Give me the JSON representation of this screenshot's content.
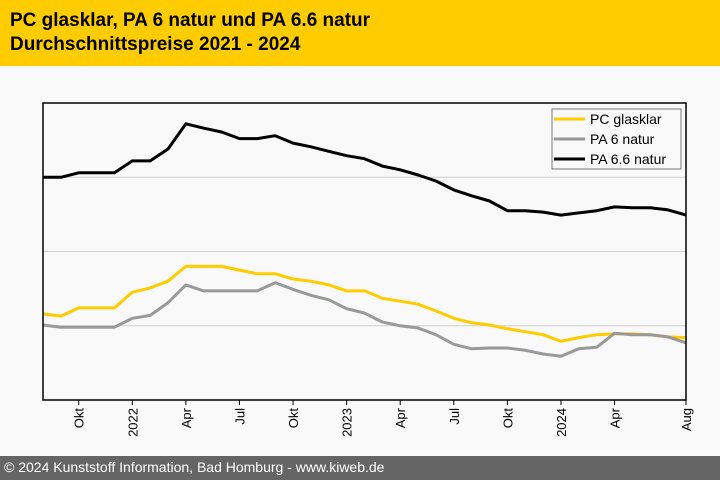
{
  "header": {
    "title_line1": "PC glasklar, PA 6 natur und PA 6.6 natur",
    "title_line2": "Durchschnittspreise 2021 - 2024",
    "background_color": "#ffcc00"
  },
  "footer": {
    "text": "© 2024 Kunststoff Information, Bad Homburg - www.kiweb.de",
    "background_color": "#656565"
  },
  "chart_data": {
    "type": "line",
    "title": "PC glasklar, PA 6 natur und PA 6.6 natur — Durchschnittspreise 2021 - 2024",
    "xlabel": "",
    "ylabel": "",
    "y_unit_note": "No y-axis tick labels shown; values are relative index units where horizontal gridlines are at 1, 2 and 3",
    "ylim": [
      0,
      4
    ],
    "y_gridlines": [
      1,
      2,
      3
    ],
    "grid": true,
    "legend_position": "top-right",
    "x": [
      "2021-08",
      "2021-09",
      "2021-10",
      "2021-11",
      "2021-12",
      "2022-01",
      "2022-02",
      "2022-03",
      "2022-04",
      "2022-05",
      "2022-06",
      "2022-07",
      "2022-08",
      "2022-09",
      "2022-10",
      "2022-11",
      "2022-12",
      "2023-01",
      "2023-02",
      "2023-03",
      "2023-04",
      "2023-05",
      "2023-06",
      "2023-07",
      "2023-08",
      "2023-09",
      "2023-10",
      "2023-11",
      "2023-12",
      "2024-01",
      "2024-02",
      "2024-03",
      "2024-04",
      "2024-05",
      "2024-06",
      "2024-07",
      "2024-08"
    ],
    "x_ticks": [
      {
        "x": "2021-10",
        "label": "Okt"
      },
      {
        "x": "2022-01",
        "label": "2022"
      },
      {
        "x": "2022-04",
        "label": "Apr"
      },
      {
        "x": "2022-07",
        "label": "Jul"
      },
      {
        "x": "2022-10",
        "label": "Okt"
      },
      {
        "x": "2023-01",
        "label": "2023"
      },
      {
        "x": "2023-04",
        "label": "Apr"
      },
      {
        "x": "2023-07",
        "label": "Jul"
      },
      {
        "x": "2023-10",
        "label": "Okt"
      },
      {
        "x": "2024-01",
        "label": "2024"
      },
      {
        "x": "2024-04",
        "label": "Apr"
      },
      {
        "x": "2024-08",
        "label": "Aug"
      }
    ],
    "series": [
      {
        "name": "PC glasklar",
        "color": "#ffcc00",
        "values": [
          1.16,
          1.13,
          1.24,
          1.24,
          1.24,
          1.45,
          1.51,
          1.6,
          1.8,
          1.8,
          1.8,
          1.75,
          1.7,
          1.7,
          1.63,
          1.6,
          1.55,
          1.47,
          1.47,
          1.37,
          1.33,
          1.29,
          1.2,
          1.1,
          1.04,
          1.01,
          0.96,
          0.92,
          0.88,
          0.79,
          0.84,
          0.88,
          0.89,
          0.89,
          0.88,
          0.85,
          0.84
        ]
      },
      {
        "name": "PA 6 natur",
        "color": "#999999",
        "values": [
          1.01,
          0.98,
          0.98,
          0.98,
          0.98,
          1.1,
          1.14,
          1.31,
          1.55,
          1.47,
          1.47,
          1.47,
          1.47,
          1.58,
          1.49,
          1.41,
          1.35,
          1.23,
          1.17,
          1.05,
          1.0,
          0.97,
          0.88,
          0.75,
          0.69,
          0.7,
          0.7,
          0.67,
          0.62,
          0.59,
          0.69,
          0.71,
          0.9,
          0.88,
          0.88,
          0.85,
          0.77
        ]
      },
      {
        "name": "PA 6.6 natur",
        "color": "#000000",
        "values": [
          3.0,
          3.0,
          3.06,
          3.06,
          3.06,
          3.22,
          3.22,
          3.38,
          3.72,
          3.66,
          3.61,
          3.52,
          3.52,
          3.56,
          3.46,
          3.41,
          3.35,
          3.29,
          3.25,
          3.15,
          3.1,
          3.03,
          2.95,
          2.83,
          2.75,
          2.68,
          2.55,
          2.55,
          2.53,
          2.49,
          2.52,
          2.55,
          2.6,
          2.59,
          2.59,
          2.56,
          2.49
        ]
      }
    ]
  }
}
